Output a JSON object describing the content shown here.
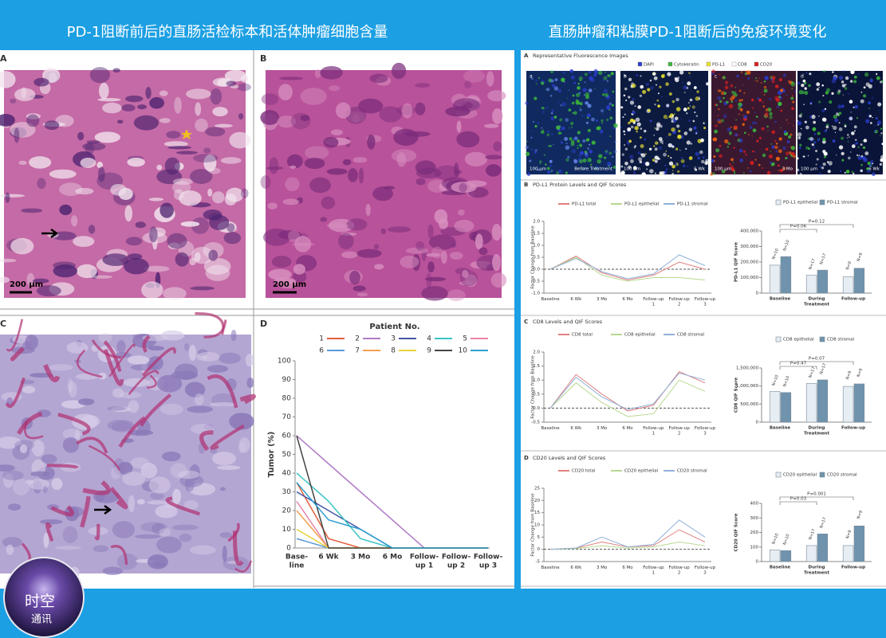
{
  "header": {
    "left_title": "PD-1阻断前后的直肠活检标本和活体肿瘤细胞含量",
    "right_title": "直肠肿瘤和粘膜PD-1阻断后的免疫环境变化"
  },
  "logo": {
    "line1": "时空",
    "line2": "通讯"
  },
  "left": {
    "panels": [
      {
        "label": "A",
        "scale": "200 µm"
      },
      {
        "label": "B",
        "scale": "200 µm"
      },
      {
        "label": "C"
      }
    ],
    "chart": {
      "type": "line",
      "label": "D",
      "legend_title": "Patient No.",
      "y_label": "Tumor (%)",
      "categories": [
        [
          "Base-",
          "line"
        ],
        [
          "6 Wk"
        ],
        [
          "3 Mo"
        ],
        [
          "6 Mo"
        ],
        [
          "Follow-",
          "up 1"
        ],
        [
          "Follow-",
          "up 2"
        ],
        [
          "Follow-",
          "up 3"
        ]
      ],
      "ylim": [
        0,
        100
      ],
      "yticks": [
        0,
        10,
        20,
        30,
        40,
        50,
        60,
        70,
        80,
        90,
        100
      ],
      "series": [
        {
          "name": "1",
          "color": "#e4603c",
          "values": [
            35,
            5,
            0,
            0,
            0,
            0,
            0
          ]
        },
        {
          "name": "2",
          "color": "#b07cc6",
          "values": [
            60,
            45,
            30,
            15,
            0,
            0,
            0
          ]
        },
        {
          "name": "3",
          "color": "#4456a4",
          "values": [
            30,
            20,
            10,
            0,
            0,
            0,
            0
          ]
        },
        {
          "name": "4",
          "color": "#3cc4c4",
          "values": [
            40,
            25,
            5,
            0,
            0,
            0,
            0
          ]
        },
        {
          "name": "5",
          "color": "#e884aa",
          "values": [
            25,
            0,
            0,
            0,
            0,
            0,
            0
          ]
        },
        {
          "name": "6",
          "color": "#5a9ad8",
          "values": [
            5,
            0,
            0,
            0,
            0,
            0,
            0
          ]
        },
        {
          "name": "7",
          "color": "#f2a050",
          "values": [
            20,
            0,
            0,
            0,
            0,
            0,
            0
          ]
        },
        {
          "name": "8",
          "color": "#e8d23c",
          "values": [
            10,
            0,
            0,
            0,
            0,
            0,
            0
          ]
        },
        {
          "name": "9",
          "color": "#444444",
          "values": [
            60,
            0,
            0,
            0,
            0,
            0,
            0
          ]
        },
        {
          "name": "10",
          "color": "#2c9ed0",
          "values": [
            35,
            15,
            10,
            0,
            0,
            0,
            0
          ]
        }
      ]
    }
  },
  "right": {
    "fluorescence": {
      "label": "A",
      "title": "Representative Fluorescence Images",
      "legend": [
        {
          "name": "DAPI",
          "color": "#2a3cc8"
        },
        {
          "name": "Cytokeratin",
          "color": "#3cb43c"
        },
        {
          "name": "PD-L1",
          "color": "#e8e030"
        },
        {
          "name": "CD8",
          "color": "#ffffff"
        },
        {
          "name": "CD20",
          "color": "#d82020"
        }
      ],
      "images": [
        {
          "letter": "a",
          "scale": "100 µm",
          "caption": "Before Treatment"
        },
        {
          "letter": "b",
          "scale": "100 µm",
          "caption": "6 Wk"
        },
        {
          "letter": "c",
          "scale": "100 µm",
          "caption": "3 Mo"
        },
        {
          "letter": "d",
          "scale": "100 µm",
          "caption": "6 Wk"
        }
      ]
    },
    "sections": [
      {
        "label": "B",
        "title": "PD-L1 Protein Levels and QIF Scores",
        "line": {
          "type": "line",
          "y_label": "Factor Change from Baseline",
          "categories": [
            [
              "Baseline"
            ],
            [
              "6 Wk"
            ],
            [
              "3 Mo"
            ],
            [
              "6 Mo"
            ],
            [
              "Follow-up",
              "1"
            ],
            [
              "Follow-up",
              "2"
            ],
            [
              "Follow-up",
              "3"
            ]
          ],
          "ylim": [
            -1,
            2
          ],
          "yticks": [
            {
              "value": -1,
              "label": "-1.0"
            },
            -0.5,
            {
              "value": 0,
              "label": "0.0"
            },
            0.5,
            {
              "value": 1,
              "label": "1.0"
            },
            1.5,
            {
              "value": 2,
              "label": "2.0"
            }
          ],
          "series": [
            {
              "name": "PD-L1 total",
              "color": "#e08080",
              "values": [
                0,
                0.55,
                -0.15,
                -0.45,
                -0.25,
                0.3,
                0
              ]
            },
            {
              "name": "PD-L1 epithelial",
              "color": "#b8d890",
              "values": [
                0,
                0.5,
                -0.25,
                -0.5,
                -0.35,
                -0.35,
                -0.45
              ]
            },
            {
              "name": "PD-L1 stromal",
              "color": "#90b0d8",
              "values": [
                0,
                0.45,
                -0.1,
                -0.4,
                -0.2,
                0.6,
                0.15
              ]
            }
          ]
        },
        "bar": {
          "type": "bar",
          "y_label": "PD-L1 QIF Score",
          "categories": [
            [
              "Baseline"
            ],
            [
              "During",
              "Treatment"
            ],
            [
              "Follow-up"
            ]
          ],
          "ylim": [
            0,
            400000
          ],
          "yticks": [
            0,
            {
              "value": 100000,
              "label": "100,000"
            },
            {
              "value": 200000,
              "label": "200,000"
            },
            {
              "value": 300000,
              "label": "300,000"
            },
            {
              "value": 400000,
              "label": "400,000"
            }
          ],
          "series": [
            {
              "name": "PD-L1 epithelial",
              "color": "#e6edf3",
              "values": [
                180000,
                115000,
                105000
              ],
              "n_labels": [
                "N=10",
                "N=17",
                "N=9"
              ]
            },
            {
              "name": "PD-L1 stromal",
              "color": "#6f93ad",
              "values": [
                235000,
                148000,
                160000
              ],
              "n_labels": [
                "N=10",
                "N=17",
                "N=9"
              ]
            }
          ],
          "p_values": [
            "P=0.12",
            "P=0.06"
          ]
        }
      },
      {
        "label": "C",
        "title": "CD8 Levels and QIF Scores",
        "line": {
          "type": "line",
          "y_label": "Factor Change from Baseline",
          "categories": [
            [
              "Baseline"
            ],
            [
              "6 Wk"
            ],
            [
              "3 Mo"
            ],
            [
              "6 Mo"
            ],
            [
              "Follow-up",
              "1"
            ],
            [
              "Follow-up",
              "2"
            ],
            [
              "Follow-up",
              "3"
            ]
          ],
          "ylim": [
            -0.5,
            2
          ],
          "yticks": [
            -0.5,
            {
              "value": 0,
              "label": "0.0"
            },
            0.5,
            {
              "value": 1,
              "label": "1.0"
            },
            1.5,
            {
              "value": 2,
              "label": "2.0"
            }
          ],
          "series": [
            {
              "name": "CD8 total",
              "color": "#e08080",
              "values": [
                0,
                1.2,
                0.5,
                -0.1,
                0.1,
                1.3,
                0.9
              ]
            },
            {
              "name": "CD8 epithelial",
              "color": "#b8d890",
              "values": [
                0,
                0.9,
                0.2,
                -0.3,
                -0.2,
                1,
                0.6
              ]
            },
            {
              "name": "CD8 stromal",
              "color": "#90b0d8",
              "values": [
                0,
                1.1,
                0.4,
                -0.05,
                0.15,
                1.25,
                1
              ]
            }
          ]
        },
        "bar": {
          "type": "bar",
          "y_label": "CD8 QIF Score",
          "categories": [
            [
              "Baseline"
            ],
            [
              "During",
              "Treatment"
            ],
            [
              "Follow-up"
            ]
          ],
          "ylim": [
            0,
            1500000
          ],
          "yticks": [
            0,
            {
              "value": 500000,
              "label": "500,000"
            },
            {
              "value": 1000000,
              "label": "1,000,000"
            },
            {
              "value": 1500000,
              "label": "1,500,000"
            }
          ],
          "series": [
            {
              "name": "CD8 epithelial",
              "color": "#e6edf3",
              "values": [
                850000,
                1070000,
                990000
              ],
              "n_labels": [
                "N=10",
                "N=17",
                "N=9"
              ]
            },
            {
              "name": "CD8 stromal",
              "color": "#6f93ad",
              "values": [
                820000,
                1170000,
                1060000
              ],
              "n_labels": [
                "N=10",
                "N=17",
                "N=9"
              ]
            }
          ],
          "p_values": [
            "P=0.07",
            "P=0.47"
          ]
        }
      },
      {
        "label": "D",
        "title": "CD20 Levels and QIF Scores",
        "line": {
          "type": "line",
          "y_label": "Factor Change from Baseline",
          "categories": [
            [
              "Baseline"
            ],
            [
              "6 Wk"
            ],
            [
              "3 Mo"
            ],
            [
              "6 Mo"
            ],
            [
              "Follow-up",
              "1"
            ],
            [
              "Follow-up",
              "2"
            ],
            [
              "Follow-up",
              "3"
            ]
          ],
          "ylim": [
            -5,
            25
          ],
          "yticks": [
            -5,
            0,
            5,
            10,
            15,
            20,
            25
          ],
          "series": [
            {
              "name": "CD20 total",
              "color": "#e08080",
              "values": [
                0,
                0.5,
                3,
                1,
                1.5,
                8,
                3
              ]
            },
            {
              "name": "CD20 epithelial",
              "color": "#b8d890",
              "values": [
                0,
                0.3,
                1.5,
                0.5,
                1,
                3,
                1.5
              ]
            },
            {
              "name": "CD20 stromal",
              "color": "#90b0d8",
              "values": [
                0,
                0.5,
                5,
                1,
                2,
                12,
                5
              ]
            }
          ]
        },
        "bar": {
          "type": "bar",
          "y_label": "CD20 QIF Score",
          "categories": [
            [
              "Baseline"
            ],
            [
              "During",
              "Treatment"
            ],
            [
              "Follow-up"
            ]
          ],
          "ylim": [
            0,
            400
          ],
          "yticks": [
            0,
            100,
            200,
            300,
            400
          ],
          "series": [
            {
              "name": "CD20 epithelial",
              "color": "#e6edf3",
              "values": [
                80,
                110,
                110
              ],
              "n_labels": [
                "N=10",
                "N=17",
                "N=9"
              ]
            },
            {
              "name": "CD20 stromal",
              "color": "#6f93ad",
              "values": [
                75,
                190,
                245
              ],
              "n_labels": [
                "N=10",
                "N=17",
                "N=9"
              ]
            }
          ],
          "p_values": [
            "P=0.001",
            "P=0.03"
          ]
        }
      }
    ]
  }
}
